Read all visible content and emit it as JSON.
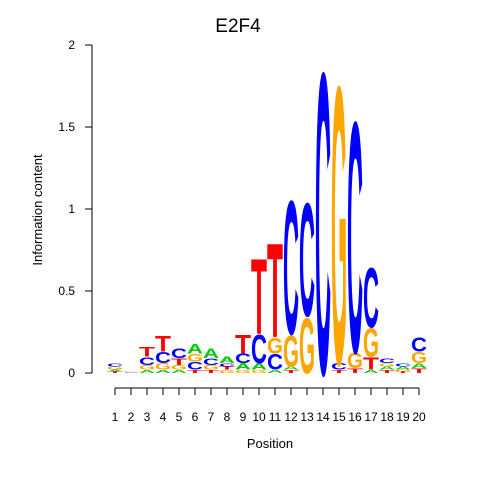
{
  "chart_data": {
    "type": "sequence-logo",
    "title": "E2F4",
    "xlabel": "Position",
    "ylabel": "Information content",
    "ylim": [
      0,
      2
    ],
    "y_ticks": [
      "0",
      "0.5",
      "1",
      "1.5",
      "2"
    ],
    "positions": [
      "1",
      "2",
      "3",
      "4",
      "5",
      "6",
      "7",
      "8",
      "9",
      "10",
      "11",
      "12",
      "13",
      "14",
      "15",
      "16",
      "17",
      "18",
      "19",
      "20"
    ],
    "colors": {
      "A": "#00cc00",
      "C": "#0000ff",
      "G": "#ffa500",
      "T": "#ff0000"
    },
    "columns": [
      [
        {
          "b": "T",
          "h": 0.01
        },
        {
          "b": "A",
          "h": 0.01
        },
        {
          "b": "G",
          "h": 0.02
        },
        {
          "b": "C",
          "h": 0.02
        }
      ],
      [
        {
          "b": "C",
          "h": 0.005
        },
        {
          "b": "G",
          "h": 0.005
        }
      ],
      [
        {
          "b": "A",
          "h": 0.02
        },
        {
          "b": "G",
          "h": 0.03
        },
        {
          "b": "C",
          "h": 0.05
        },
        {
          "b": "T",
          "h": 0.06
        }
      ],
      [
        {
          "b": "A",
          "h": 0.02
        },
        {
          "b": "G",
          "h": 0.04
        },
        {
          "b": "C",
          "h": 0.07
        },
        {
          "b": "T",
          "h": 0.1
        }
      ],
      [
        {
          "b": "A",
          "h": 0.02
        },
        {
          "b": "G",
          "h": 0.03
        },
        {
          "b": "T",
          "h": 0.04
        },
        {
          "b": "C",
          "h": 0.06
        }
      ],
      [
        {
          "b": "T",
          "h": 0.02
        },
        {
          "b": "C",
          "h": 0.05
        },
        {
          "b": "G",
          "h": 0.05
        },
        {
          "b": "A",
          "h": 0.06
        }
      ],
      [
        {
          "b": "T",
          "h": 0.02
        },
        {
          "b": "G",
          "h": 0.03
        },
        {
          "b": "C",
          "h": 0.04
        },
        {
          "b": "A",
          "h": 0.06
        }
      ],
      [
        {
          "b": "G",
          "h": 0.02
        },
        {
          "b": "T",
          "h": 0.02
        },
        {
          "b": "C",
          "h": 0.02
        },
        {
          "b": "A",
          "h": 0.04
        }
      ],
      [
        {
          "b": "G",
          "h": 0.02
        },
        {
          "b": "A",
          "h": 0.04
        },
        {
          "b": "C",
          "h": 0.06
        },
        {
          "b": "T",
          "h": 0.12
        }
      ],
      [
        {
          "b": "G",
          "h": 0.02
        },
        {
          "b": "A",
          "h": 0.04
        },
        {
          "b": "C",
          "h": 0.18
        },
        {
          "b": "T",
          "h": 0.48
        }
      ],
      [
        {
          "b": "A",
          "h": 0.02
        },
        {
          "b": "C",
          "h": 0.1
        },
        {
          "b": "G",
          "h": 0.1
        },
        {
          "b": "T",
          "h": 0.6
        }
      ],
      [
        {
          "b": "T",
          "h": 0.02
        },
        {
          "b": "A",
          "h": 0.02
        },
        {
          "b": "G",
          "h": 0.2
        },
        {
          "b": "C",
          "h": 0.85
        }
      ],
      [
        {
          "b": "G",
          "h": 0.35
        },
        {
          "b": "C",
          "h": 0.72
        }
      ],
      [
        {
          "b": "C",
          "h": 1.92
        }
      ],
      [
        {
          "b": "T",
          "h": 0.02
        },
        {
          "b": "C",
          "h": 0.04
        },
        {
          "b": "G",
          "h": 1.77
        }
      ],
      [
        {
          "b": "T",
          "h": 0.03
        },
        {
          "b": "G",
          "h": 0.1
        },
        {
          "b": "C",
          "h": 1.47
        }
      ],
      [
        {
          "b": "A",
          "h": 0.02
        },
        {
          "b": "T",
          "h": 0.08
        },
        {
          "b": "G",
          "h": 0.18
        },
        {
          "b": "C",
          "h": 0.38
        }
      ],
      [
        {
          "b": "T",
          "h": 0.02
        },
        {
          "b": "A",
          "h": 0.02
        },
        {
          "b": "G",
          "h": 0.02
        },
        {
          "b": "C",
          "h": 0.03
        }
      ],
      [
        {
          "b": "T",
          "h": 0.01
        },
        {
          "b": "G",
          "h": 0.01
        },
        {
          "b": "A",
          "h": 0.02
        },
        {
          "b": "C",
          "h": 0.02
        }
      ],
      [
        {
          "b": "T",
          "h": 0.03
        },
        {
          "b": "A",
          "h": 0.03
        },
        {
          "b": "G",
          "h": 0.07
        },
        {
          "b": "C",
          "h": 0.09
        }
      ]
    ]
  }
}
